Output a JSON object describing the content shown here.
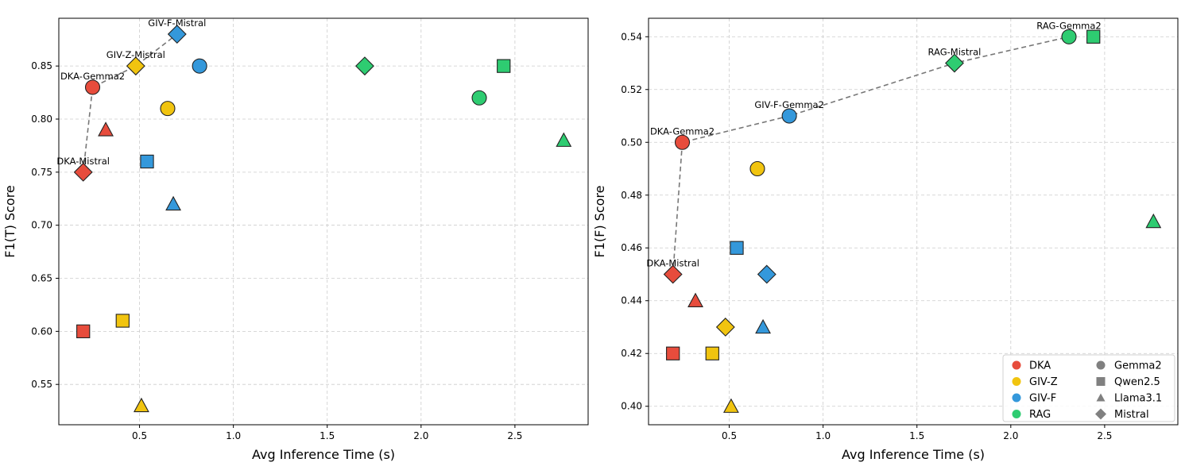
{
  "chart_data": [
    {
      "type": "scatter",
      "title": "",
      "xlabel": "Avg Inference Time (s)",
      "ylabel": "F1(T) Score",
      "xlim": [
        0.07,
        2.89
      ],
      "ylim": [
        0.512,
        0.895
      ],
      "xticks": [
        0.5,
        1.0,
        1.5,
        2.0,
        2.5
      ],
      "xtick_labels": [
        "0.5",
        "1.0",
        "1.5",
        "2.0",
        "2.5"
      ],
      "yticks": [
        0.55,
        0.6,
        0.65,
        0.7,
        0.75,
        0.8,
        0.85
      ],
      "ytick_labels": [
        "0.55",
        "0.60",
        "0.65",
        "0.70",
        "0.75",
        "0.80",
        "0.85"
      ],
      "grid": true,
      "points": [
        {
          "method": "DKA",
          "model": "Gemma2",
          "x": 0.25,
          "y": 0.83
        },
        {
          "method": "DKA",
          "model": "Qwen2.5",
          "x": 0.2,
          "y": 0.6
        },
        {
          "method": "DKA",
          "model": "Llama3.1",
          "x": 0.32,
          "y": 0.79
        },
        {
          "method": "DKA",
          "model": "Mistral",
          "x": 0.2,
          "y": 0.75
        },
        {
          "method": "GIV-Z",
          "model": "Gemma2",
          "x": 0.65,
          "y": 0.81
        },
        {
          "method": "GIV-Z",
          "model": "Qwen2.5",
          "x": 0.41,
          "y": 0.61
        },
        {
          "method": "GIV-Z",
          "model": "Llama3.1",
          "x": 0.51,
          "y": 0.53
        },
        {
          "method": "GIV-Z",
          "model": "Mistral",
          "x": 0.48,
          "y": 0.85
        },
        {
          "method": "GIV-F",
          "model": "Gemma2",
          "x": 0.82,
          "y": 0.85
        },
        {
          "method": "GIV-F",
          "model": "Qwen2.5",
          "x": 0.54,
          "y": 0.76
        },
        {
          "method": "GIV-F",
          "model": "Llama3.1",
          "x": 0.68,
          "y": 0.72
        },
        {
          "method": "GIV-F",
          "model": "Mistral",
          "x": 0.7,
          "y": 0.88
        },
        {
          "method": "RAG",
          "model": "Gemma2",
          "x": 2.31,
          "y": 0.82
        },
        {
          "method": "RAG",
          "model": "Qwen2.5",
          "x": 2.44,
          "y": 0.85
        },
        {
          "method": "RAG",
          "model": "Llama3.1",
          "x": 2.76,
          "y": 0.78
        },
        {
          "method": "RAG",
          "model": "Mistral",
          "x": 1.7,
          "y": 0.85
        }
      ],
      "frontier": [
        [
          0.2,
          0.75
        ],
        [
          0.25,
          0.83
        ],
        [
          0.48,
          0.85
        ],
        [
          0.7,
          0.88
        ]
      ],
      "annotations": [
        {
          "text": "DKA-Gemma2",
          "x": 0.25,
          "y": 0.83
        },
        {
          "text": "GIV-Z-Mistral",
          "x": 0.48,
          "y": 0.85
        },
        {
          "text": "GIV-F-Mistral",
          "x": 0.7,
          "y": 0.88
        },
        {
          "text": "DKA-Mistral",
          "x": 0.2,
          "y": 0.75
        }
      ]
    },
    {
      "type": "scatter",
      "title": "",
      "xlabel": "Avg Inference Time (s)",
      "ylabel": "F1(F) Score",
      "xlim": [
        0.07,
        2.89
      ],
      "ylim": [
        0.393,
        0.547
      ],
      "xticks": [
        0.5,
        1.0,
        1.5,
        2.0,
        2.5
      ],
      "xtick_labels": [
        "0.5",
        "1.0",
        "1.5",
        "2.0",
        "2.5"
      ],
      "yticks": [
        0.4,
        0.42,
        0.44,
        0.46,
        0.48,
        0.5,
        0.52,
        0.54
      ],
      "ytick_labels": [
        "0.40",
        "0.42",
        "0.44",
        "0.46",
        "0.48",
        "0.50",
        "0.52",
        "0.54"
      ],
      "grid": true,
      "points": [
        {
          "method": "DKA",
          "model": "Gemma2",
          "x": 0.25,
          "y": 0.5
        },
        {
          "method": "DKA",
          "model": "Qwen2.5",
          "x": 0.2,
          "y": 0.42
        },
        {
          "method": "DKA",
          "model": "Llama3.1",
          "x": 0.32,
          "y": 0.44
        },
        {
          "method": "DKA",
          "model": "Mistral",
          "x": 0.2,
          "y": 0.45
        },
        {
          "method": "GIV-Z",
          "model": "Gemma2",
          "x": 0.65,
          "y": 0.49
        },
        {
          "method": "GIV-Z",
          "model": "Qwen2.5",
          "x": 0.41,
          "y": 0.42
        },
        {
          "method": "GIV-Z",
          "model": "Llama3.1",
          "x": 0.51,
          "y": 0.4
        },
        {
          "method": "GIV-Z",
          "model": "Mistral",
          "x": 0.48,
          "y": 0.43
        },
        {
          "method": "GIV-F",
          "model": "Gemma2",
          "x": 0.82,
          "y": 0.51
        },
        {
          "method": "GIV-F",
          "model": "Qwen2.5",
          "x": 0.54,
          "y": 0.46
        },
        {
          "method": "GIV-F",
          "model": "Llama3.1",
          "x": 0.68,
          "y": 0.43
        },
        {
          "method": "GIV-F",
          "model": "Mistral",
          "x": 0.7,
          "y": 0.45
        },
        {
          "method": "RAG",
          "model": "Gemma2",
          "x": 2.31,
          "y": 0.54
        },
        {
          "method": "RAG",
          "model": "Qwen2.5",
          "x": 2.44,
          "y": 0.54
        },
        {
          "method": "RAG",
          "model": "Llama3.1",
          "x": 2.76,
          "y": 0.47
        },
        {
          "method": "RAG",
          "model": "Mistral",
          "x": 1.7,
          "y": 0.53
        }
      ],
      "frontier": [
        [
          0.2,
          0.45
        ],
        [
          0.25,
          0.5
        ],
        [
          0.82,
          0.51
        ],
        [
          1.7,
          0.53
        ],
        [
          2.31,
          0.54
        ]
      ],
      "annotations": [
        {
          "text": "RAG-Gemma2",
          "x": 2.31,
          "y": 0.54
        },
        {
          "text": "RAG-Mistral",
          "x": 1.7,
          "y": 0.53
        },
        {
          "text": "GIV-F-Gemma2",
          "x": 0.82,
          "y": 0.51
        },
        {
          "text": "DKA-Gemma2",
          "x": 0.25,
          "y": 0.5
        },
        {
          "text": "DKA-Mistral",
          "x": 0.2,
          "y": 0.45
        }
      ],
      "legend": {
        "position": "lower-right",
        "methods": [
          {
            "label": "DKA",
            "color": "#e74c3c"
          },
          {
            "label": "GIV-Z",
            "color": "#f1c40f"
          },
          {
            "label": "GIV-F",
            "color": "#3498db"
          },
          {
            "label": "RAG",
            "color": "#2ecc71"
          }
        ],
        "models": [
          {
            "label": "Gemma2",
            "marker": "circle"
          },
          {
            "label": "Qwen2.5",
            "marker": "square"
          },
          {
            "label": "Llama3.1",
            "marker": "triangle"
          },
          {
            "label": "Mistral",
            "marker": "diamond"
          }
        ]
      }
    }
  ],
  "colors": {
    "DKA": "#e74c3c",
    "GIV-Z": "#f1c40f",
    "GIV-F": "#3498db",
    "RAG": "#2ecc71",
    "legend_marker": "#808080",
    "frontier_line": "#777777"
  },
  "markers": {
    "Gemma2": "circle",
    "Qwen2.5": "square",
    "Llama3.1": "triangle",
    "Mistral": "diamond"
  }
}
